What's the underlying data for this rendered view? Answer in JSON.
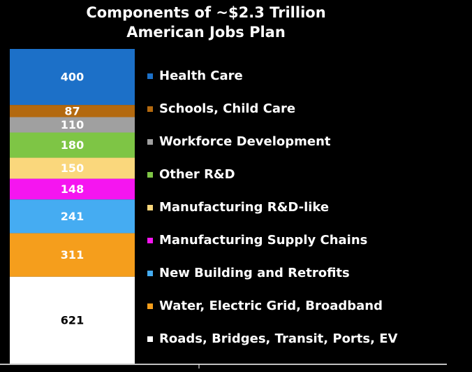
{
  "chart_data": {
    "type": "stacked-bar",
    "title": [
      "Components of ~$2.3 Trillion",
      "American Jobs Plan"
    ],
    "categories": [
      null
    ],
    "series": [
      {
        "name": "Roads, Bridges, Transit, Ports, EV",
        "color": "#ffffff",
        "values": [
          621
        ]
      },
      {
        "name": "Water, Electric Grid, Broadband",
        "color": "#f59e1c",
        "values": [
          311
        ]
      },
      {
        "name": "New Building and Retrofits",
        "color": "#45acf2",
        "values": [
          241
        ]
      },
      {
        "name": "Manufacturing Supply Chains",
        "color": "#f515f0",
        "values": [
          148
        ]
      },
      {
        "name": "Manufacturing R&D-like",
        "color": "#fad77c",
        "values": [
          150
        ]
      },
      {
        "name": "Other R&D",
        "color": "#7ec545",
        "values": [
          180
        ]
      },
      {
        "name": "Workforce Development",
        "color": "#a0a0a0",
        "values": [
          110
        ]
      },
      {
        "name": "Schools, Child Care",
        "color": "#b3690f",
        "values": [
          87
        ]
      },
      {
        "name": "Health Care",
        "color": "#1c70c8",
        "values": [
          400
        ]
      }
    ]
  }
}
